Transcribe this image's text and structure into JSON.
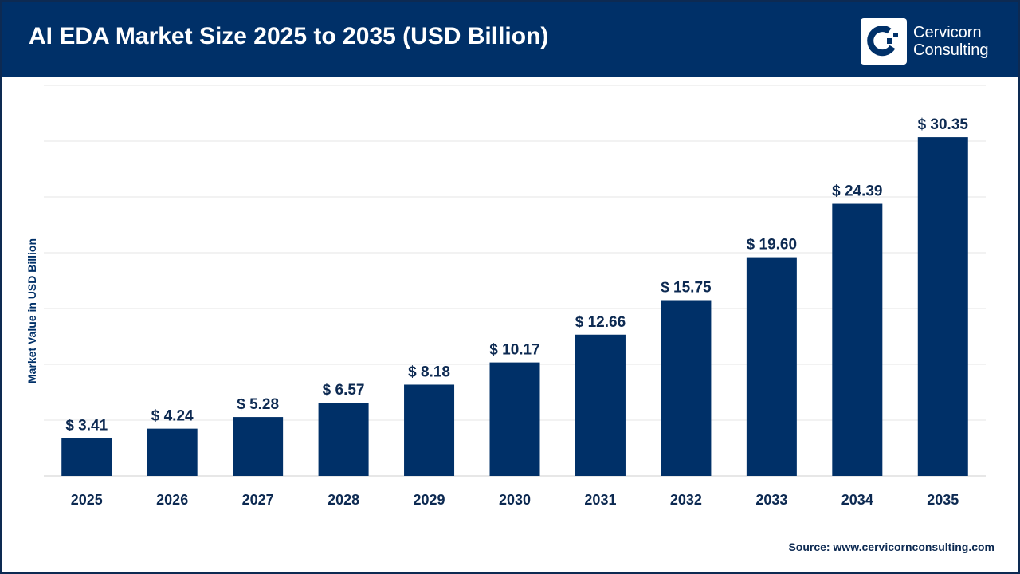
{
  "header": {
    "title": "AI EDA Market Size 2025 to 2035 (USD Billion)",
    "logo_line1": "Cervicorn",
    "logo_line2": "Consulting"
  },
  "source": "Source: www.cervicornconsulting.com",
  "colors": {
    "bar": "#003068",
    "header": "#003068",
    "grid": "#e6e6e6"
  },
  "chart_data": {
    "type": "bar",
    "title": "AI EDA Market Size 2025 to 2035 (USD Billion)",
    "xlabel": "",
    "ylabel": "Market Value in USD Billion",
    "ylim": [
      0,
      35
    ],
    "grid": true,
    "categories": [
      "2025",
      "2026",
      "2027",
      "2028",
      "2029",
      "2030",
      "2031",
      "2032",
      "2033",
      "2034",
      "2035"
    ],
    "values": [
      3.41,
      4.24,
      5.28,
      6.57,
      8.18,
      10.17,
      12.66,
      15.75,
      19.6,
      24.39,
      30.35
    ],
    "data_labels": [
      "$ 3.41",
      "$ 4.24",
      "$ 5.28",
      "$ 6.57",
      "$ 8.18",
      "$ 10.17",
      "$ 12.66",
      "$ 15.75",
      "$ 19.60",
      "$ 24.39",
      "$ 30.35"
    ]
  }
}
